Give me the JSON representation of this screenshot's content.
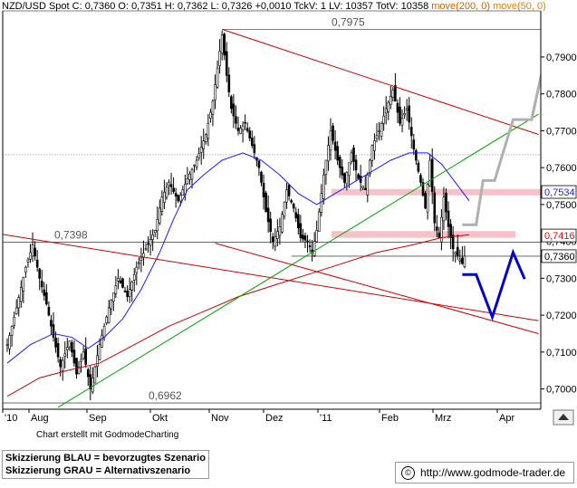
{
  "header": {
    "symbol": "NZD/USD Spot",
    "quote": "C: 0,7360  O: 0,7351  H: 0,7362  L: 0,7326  +0,0010  TckV: 1  LV: 10357  TotV: 10358",
    "ma200": "move(200, 0)",
    "ma50": "move(50, 0)"
  },
  "footer": {
    "credit": "Chart erstellt mit GodmodeCharting",
    "legend_blue": "Skizzierung BLAU = bevorzugtes Szenario",
    "legend_gray": "Skizzierung GRAU = Alternativszenario",
    "url": "http://www.godmode-trader.de"
  },
  "colors": {
    "candles": "#000000",
    "ma50": "#1a1aff",
    "ma200": "#cc0000",
    "trend_red": "#cc0000",
    "trend_green": "#00a000",
    "zone_pink": "#f8c0c8",
    "scenario_blue": "#0000cc",
    "scenario_gray": "#b0b0b0",
    "tag_blue": "#1a1aff",
    "tag_red": "#ee0000"
  },
  "chart_data": {
    "type": "candlestick",
    "y_axis": {
      "ylim": [
        0.6945,
        0.8025
      ],
      "ticks": [
        "0,7900",
        "0,7800",
        "0,7700",
        "0,7600",
        "0,7500",
        "0,7400",
        "0,7300",
        "0,7200",
        "0,7100",
        "0,7000"
      ],
      "tick_values": [
        0.79,
        0.78,
        0.77,
        0.76,
        0.75,
        0.74,
        0.73,
        0.72,
        0.71,
        0.7
      ]
    },
    "x_axis": {
      "labels": [
        "'10",
        "Aug",
        "Sep",
        "Okt",
        "Nov",
        "Dez",
        "'11",
        "Feb",
        "Mrz",
        "Apr"
      ]
    },
    "price_labels": [
      {
        "text": "0,7975",
        "value": 0.7975
      },
      {
        "text": "0,7398",
        "value": 0.7398
      },
      {
        "text": "0,6962",
        "value": 0.6962
      }
    ],
    "right_tags": [
      {
        "text": "0,7534",
        "value": 0.7534,
        "style": "blue"
      },
      {
        "text": "0,7416",
        "value": 0.7416,
        "style": "red"
      },
      {
        "text": "0,7360",
        "value": 0.736,
        "style": "plain"
      }
    ],
    "zones": [
      {
        "from": 0.7525,
        "to": 0.7542
      },
      {
        "from": 0.741,
        "to": 0.7428
      }
    ],
    "close_path": [
      {
        "i": 0,
        "c": 0.712
      },
      {
        "i": 4,
        "c": 0.722
      },
      {
        "i": 8,
        "c": 0.733
      },
      {
        "i": 11,
        "c": 0.739
      },
      {
        "i": 14,
        "c": 0.73
      },
      {
        "i": 17,
        "c": 0.723
      },
      {
        "i": 20,
        "c": 0.714
      },
      {
        "i": 23,
        "c": 0.706
      },
      {
        "i": 27,
        "c": 0.713
      },
      {
        "i": 30,
        "c": 0.704
      },
      {
        "i": 33,
        "c": 0.71
      },
      {
        "i": 36,
        "c": 0.7
      },
      {
        "i": 40,
        "c": 0.712
      },
      {
        "i": 44,
        "c": 0.722
      },
      {
        "i": 48,
        "c": 0.73
      },
      {
        "i": 52,
        "c": 0.725
      },
      {
        "i": 56,
        "c": 0.733
      },
      {
        "i": 60,
        "c": 0.738
      },
      {
        "i": 64,
        "c": 0.743
      },
      {
        "i": 67,
        "c": 0.752
      },
      {
        "i": 70,
        "c": 0.756
      },
      {
        "i": 74,
        "c": 0.751
      },
      {
        "i": 78,
        "c": 0.757
      },
      {
        "i": 82,
        "c": 0.762
      },
      {
        "i": 86,
        "c": 0.769
      },
      {
        "i": 89,
        "c": 0.778
      },
      {
        "i": 91,
        "c": 0.787
      },
      {
        "i": 93,
        "c": 0.796
      },
      {
        "i": 95,
        "c": 0.785
      },
      {
        "i": 97,
        "c": 0.776
      },
      {
        "i": 100,
        "c": 0.77
      },
      {
        "i": 103,
        "c": 0.772
      },
      {
        "i": 106,
        "c": 0.766
      },
      {
        "i": 109,
        "c": 0.76
      },
      {
        "i": 112,
        "c": 0.748
      },
      {
        "i": 115,
        "c": 0.74
      },
      {
        "i": 118,
        "c": 0.744
      },
      {
        "i": 121,
        "c": 0.754
      },
      {
        "i": 124,
        "c": 0.749
      },
      {
        "i": 127,
        "c": 0.741
      },
      {
        "i": 130,
        "c": 0.74
      },
      {
        "i": 132,
        "c": 0.737
      },
      {
        "i": 134,
        "c": 0.743
      },
      {
        "i": 137,
        "c": 0.758
      },
      {
        "i": 140,
        "c": 0.77
      },
      {
        "i": 143,
        "c": 0.762
      },
      {
        "i": 146,
        "c": 0.756
      },
      {
        "i": 149,
        "c": 0.764
      },
      {
        "i": 152,
        "c": 0.757
      },
      {
        "i": 155,
        "c": 0.754
      },
      {
        "i": 158,
        "c": 0.766
      },
      {
        "i": 161,
        "c": 0.77
      },
      {
        "i": 164,
        "c": 0.776
      },
      {
        "i": 167,
        "c": 0.781
      },
      {
        "i": 170,
        "c": 0.772
      },
      {
        "i": 173,
        "c": 0.776
      },
      {
        "i": 176,
        "c": 0.765
      },
      {
        "i": 179,
        "c": 0.756
      },
      {
        "i": 181,
        "c": 0.749
      },
      {
        "i": 183,
        "c": 0.762
      },
      {
        "i": 185,
        "c": 0.745
      },
      {
        "i": 187,
        "c": 0.741
      },
      {
        "i": 189,
        "c": 0.752
      },
      {
        "i": 191,
        "c": 0.744
      },
      {
        "i": 193,
        "c": 0.738
      },
      {
        "i": 195,
        "c": 0.736
      },
      {
        "i": 197,
        "c": 0.734
      },
      {
        "i": 198,
        "c": 0.736
      }
    ],
    "ma50": [
      {
        "i": 0,
        "v": 0.707
      },
      {
        "i": 10,
        "v": 0.712
      },
      {
        "i": 20,
        "v": 0.715
      },
      {
        "i": 28,
        "v": 0.714
      },
      {
        "i": 35,
        "v": 0.711
      },
      {
        "i": 42,
        "v": 0.714
      },
      {
        "i": 50,
        "v": 0.719
      },
      {
        "i": 58,
        "v": 0.727
      },
      {
        "i": 66,
        "v": 0.737
      },
      {
        "i": 72,
        "v": 0.746
      },
      {
        "i": 78,
        "v": 0.754
      },
      {
        "i": 85,
        "v": 0.758
      },
      {
        "i": 93,
        "v": 0.762
      },
      {
        "i": 102,
        "v": 0.764
      },
      {
        "i": 110,
        "v": 0.762
      },
      {
        "i": 118,
        "v": 0.758
      },
      {
        "i": 126,
        "v": 0.753
      },
      {
        "i": 134,
        "v": 0.75
      },
      {
        "i": 142,
        "v": 0.753
      },
      {
        "i": 150,
        "v": 0.756
      },
      {
        "i": 158,
        "v": 0.759
      },
      {
        "i": 166,
        "v": 0.762
      },
      {
        "i": 174,
        "v": 0.764
      },
      {
        "i": 182,
        "v": 0.764
      },
      {
        "i": 188,
        "v": 0.761
      },
      {
        "i": 194,
        "v": 0.756
      },
      {
        "i": 200,
        "v": 0.751
      }
    ],
    "ma200": [
      {
        "i": 0,
        "v": 0.698
      },
      {
        "i": 14,
        "v": 0.703
      },
      {
        "i": 26,
        "v": 0.705
      },
      {
        "i": 40,
        "v": 0.707
      },
      {
        "i": 55,
        "v": 0.712
      },
      {
        "i": 70,
        "v": 0.717
      },
      {
        "i": 85,
        "v": 0.721
      },
      {
        "i": 100,
        "v": 0.725
      },
      {
        "i": 115,
        "v": 0.728
      },
      {
        "i": 130,
        "v": 0.731
      },
      {
        "i": 145,
        "v": 0.734
      },
      {
        "i": 160,
        "v": 0.737
      },
      {
        "i": 175,
        "v": 0.739
      },
      {
        "i": 188,
        "v": 0.741
      },
      {
        "i": 200,
        "v": 0.7418
      }
    ],
    "trendlines": [
      {
        "color": "red",
        "from": {
          "i": 93,
          "v": 0.7975
        },
        "to": {
          "i": 230,
          "v": 0.769
        }
      },
      {
        "color": "red",
        "from": {
          "i": -3,
          "v": 0.742
        },
        "to": {
          "i": 230,
          "v": 0.7185
        }
      },
      {
        "color": "red",
        "from": {
          "i": 90,
          "v": 0.7395
        },
        "to": {
          "i": 230,
          "v": 0.715
        }
      },
      {
        "color": "green",
        "from": {
          "i": 22,
          "v": 0.695
        },
        "to": {
          "i": 230,
          "v": 0.7745
        }
      }
    ],
    "hlines": [
      {
        "value": 0.7975,
        "from": 93,
        "dotted": false
      },
      {
        "value": 0.7398,
        "from": -3,
        "dotted": false
      },
      {
        "value": 0.6962,
        "from": -3,
        "dotted": false
      },
      {
        "value": 0.736,
        "from": 123,
        "dotted": false
      },
      {
        "value": 0.7635,
        "from": -3,
        "dotted": true
      }
    ],
    "scenario_blue": [
      {
        "i": 197,
        "v": 0.731
      },
      {
        "i": 203,
        "v": 0.731
      },
      {
        "i": 210,
        "v": 0.7195
      },
      {
        "i": 219,
        "v": 0.737
      },
      {
        "i": 224,
        "v": 0.7298
      }
    ],
    "scenario_gray": [
      {
        "i": 197,
        "v": 0.7445
      },
      {
        "i": 203,
        "v": 0.7445
      },
      {
        "i": 206,
        "v": 0.7565
      },
      {
        "i": 211,
        "v": 0.7565
      },
      {
        "i": 219,
        "v": 0.773
      },
      {
        "i": 227,
        "v": 0.773
      },
      {
        "i": 236,
        "v": 0.799
      }
    ]
  }
}
